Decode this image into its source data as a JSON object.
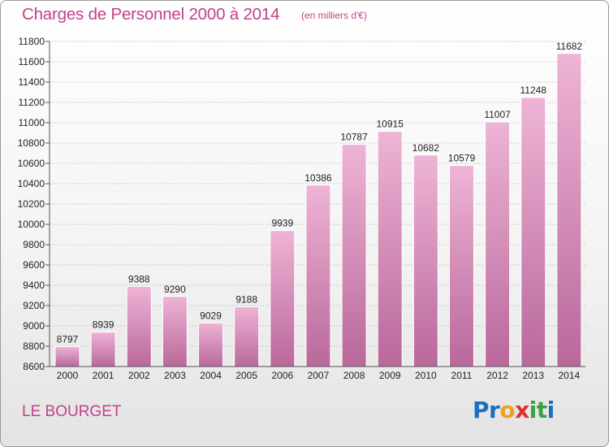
{
  "header": {
    "title": "Charges de Personnel 2000 à 2014",
    "subtitle": "(en milliers d'€)"
  },
  "footer": {
    "place": "LE BOURGET",
    "brand": "Proxiti",
    "brand_letters": [
      {
        "char": "P",
        "color": "#1a6fc0"
      },
      {
        "char": "r",
        "color": "#1a6fc0"
      },
      {
        "char": "o",
        "color": "#f0a020"
      },
      {
        "char": "x",
        "color": "#e03030"
      },
      {
        "char": "i",
        "color": "#3aa040"
      },
      {
        "char": "t",
        "color": "#3aa040"
      },
      {
        "char": "i",
        "color": "#1a6fc0"
      }
    ]
  },
  "colors": {
    "accent": "#c2418b",
    "bar_top": "#eeb4d6",
    "bar_bottom": "#b9689a",
    "grid": "#b0b0b0"
  },
  "chart_data": {
    "type": "bar",
    "title": "Charges de Personnel 2000 à 2014",
    "subtitle": "(en milliers d'€)",
    "categories": [
      "2000",
      "2001",
      "2002",
      "2003",
      "2004",
      "2005",
      "2006",
      "2007",
      "2008",
      "2009",
      "2010",
      "2011",
      "2012",
      "2013",
      "2014"
    ],
    "values": [
      8797,
      8939,
      9388,
      9290,
      9029,
      9188,
      9939,
      10386,
      10787,
      10915,
      10682,
      10579,
      11007,
      11248,
      11682
    ],
    "ylim": [
      8600,
      11800
    ],
    "yticks": [
      8600,
      8800,
      9000,
      9200,
      9400,
      9600,
      9800,
      10000,
      10200,
      10400,
      10600,
      10800,
      11000,
      11200,
      11400,
      11600,
      11800
    ],
    "grid": true,
    "data_labels": true
  }
}
